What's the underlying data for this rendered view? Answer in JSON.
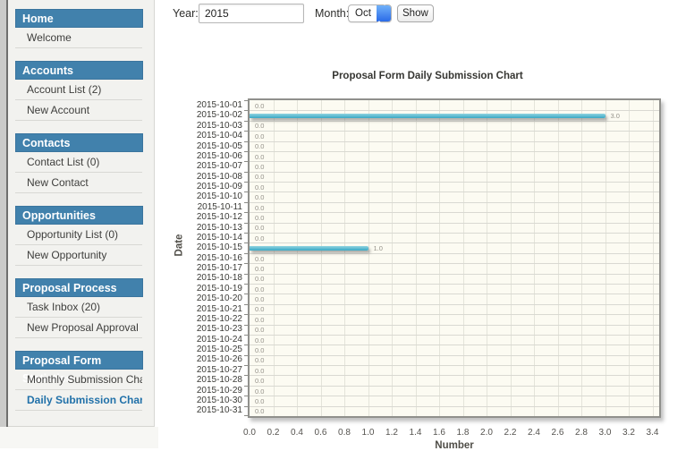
{
  "controls": {
    "year_label": "Year:",
    "year_value": "2015",
    "month_label": "Month:",
    "month_value": "Oct",
    "show_label": "Show"
  },
  "sidebar": {
    "header_color": "#4181ac",
    "active_color": "#2171a9",
    "sections": [
      {
        "header": "Home",
        "items": [
          {
            "label": "Welcome",
            "active": false
          }
        ]
      },
      {
        "header": "Accounts",
        "items": [
          {
            "label": "Account List (2)",
            "active": false
          },
          {
            "label": "New Account",
            "active": false
          }
        ]
      },
      {
        "header": "Contacts",
        "items": [
          {
            "label": "Contact List (0)",
            "active": false
          },
          {
            "label": "New Contact",
            "active": false
          }
        ]
      },
      {
        "header": "Opportunities",
        "items": [
          {
            "label": "Opportunity List (0)",
            "active": false
          },
          {
            "label": "New Opportunity",
            "active": false
          }
        ]
      },
      {
        "header": "Proposal Process",
        "items": [
          {
            "label": "Task Inbox (20)",
            "active": false
          },
          {
            "label": "New Proposal Approval",
            "active": false
          }
        ]
      },
      {
        "header": "Proposal Form Statistics",
        "items": [
          {
            "label": "Monthly Submission Chart",
            "active": false
          },
          {
            "label": "Daily Submission Chart",
            "active": true
          }
        ]
      }
    ]
  },
  "chart_data": {
    "type": "bar",
    "orientation": "horizontal",
    "title": "Proposal Form Daily Submission Chart",
    "xlabel": "Number",
    "ylabel": "Date",
    "categories": [
      "2015-10-01",
      "2015-10-02",
      "2015-10-03",
      "2015-10-04",
      "2015-10-05",
      "2015-10-06",
      "2015-10-07",
      "2015-10-08",
      "2015-10-09",
      "2015-10-10",
      "2015-10-11",
      "2015-10-12",
      "2015-10-13",
      "2015-10-14",
      "2015-10-15",
      "2015-10-16",
      "2015-10-17",
      "2015-10-18",
      "2015-10-19",
      "2015-10-20",
      "2015-10-21",
      "2015-10-22",
      "2015-10-23",
      "2015-10-24",
      "2015-10-25",
      "2015-10-26",
      "2015-10-27",
      "2015-10-28",
      "2015-10-29",
      "2015-10-30",
      "2015-10-31"
    ],
    "values": [
      0,
      3,
      0,
      0,
      0,
      0,
      0,
      0,
      0,
      0,
      0,
      0,
      0,
      0,
      1,
      0,
      0,
      0,
      0,
      0,
      0,
      0,
      0,
      0,
      0,
      0,
      0,
      0,
      0,
      0,
      0
    ],
    "xticks": [
      0,
      0.2,
      0.4,
      0.6,
      0.8,
      1.0,
      1.2,
      1.4,
      1.6,
      1.8,
      2.0,
      2.2,
      2.4,
      2.6,
      2.8,
      3.0,
      3.2,
      3.4
    ],
    "xlim": [
      0,
      3.46
    ],
    "grid": true,
    "bar_color": "#3fadc7",
    "plot_bg": "#fcfbf2"
  }
}
